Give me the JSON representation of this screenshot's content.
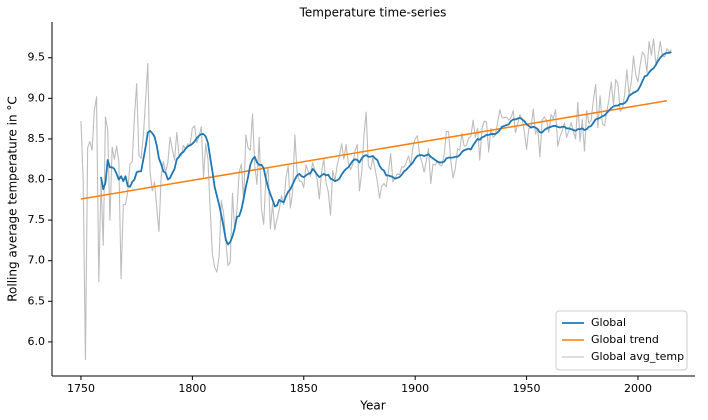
{
  "chart_data": {
    "type": "line",
    "title": "Temperature time-series",
    "xlabel": "Year",
    "ylabel": "Rolling average temperature in °C",
    "xlim": [
      1737,
      2025.6
    ],
    "ylim": [
      5.58,
      9.94
    ],
    "xticks": [
      1750,
      1800,
      1850,
      1900,
      1950,
      2000
    ],
    "yticks": [
      {
        "value": 6,
        "label": "6.0"
      },
      6.5,
      {
        "value": 7,
        "label": "7.0"
      },
      7.5,
      {
        "value": 8,
        "label": "8.0"
      },
      8.5,
      {
        "value": 9,
        "label": "9.0"
      },
      9.5
    ],
    "legend": "lower right",
    "x": [
      1750,
      1751,
      1752,
      1753,
      1754,
      1755,
      1756,
      1757,
      1758,
      1759,
      1760,
      1761,
      1762,
      1763,
      1764,
      1765,
      1766,
      1767,
      1768,
      1769,
      1770,
      1771,
      1772,
      1773,
      1774,
      1775,
      1776,
      1777,
      1778,
      1779,
      1780,
      1781,
      1782,
      1783,
      1784,
      1785,
      1786,
      1787,
      1788,
      1789,
      1790,
      1791,
      1792,
      1793,
      1794,
      1795,
      1796,
      1797,
      1798,
      1799,
      1800,
      1801,
      1802,
      1803,
      1804,
      1805,
      1806,
      1807,
      1808,
      1809,
      1810,
      1811,
      1812,
      1813,
      1814,
      1815,
      1816,
      1817,
      1818,
      1819,
      1820,
      1821,
      1822,
      1823,
      1824,
      1825,
      1826,
      1827,
      1828,
      1829,
      1830,
      1831,
      1832,
      1833,
      1834,
      1835,
      1836,
      1837,
      1838,
      1839,
      1840,
      1841,
      1842,
      1843,
      1844,
      1845,
      1846,
      1847,
      1848,
      1849,
      1850,
      1851,
      1852,
      1853,
      1854,
      1855,
      1856,
      1857,
      1858,
      1859,
      1860,
      1861,
      1862,
      1863,
      1864,
      1865,
      1866,
      1867,
      1868,
      1869,
      1870,
      1871,
      1872,
      1873,
      1874,
      1875,
      1876,
      1877,
      1878,
      1879,
      1880,
      1881,
      1882,
      1883,
      1884,
      1885,
      1886,
      1887,
      1888,
      1889,
      1890,
      1891,
      1892,
      1893,
      1894,
      1895,
      1896,
      1897,
      1898,
      1899,
      1900,
      1901,
      1902,
      1903,
      1904,
      1905,
      1906,
      1907,
      1908,
      1909,
      1910,
      1911,
      1912,
      1913,
      1914,
      1915,
      1916,
      1917,
      1918,
      1919,
      1920,
      1921,
      1922,
      1923,
      1924,
      1925,
      1926,
      1927,
      1928,
      1929,
      1930,
      1931,
      1932,
      1933,
      1934,
      1935,
      1936,
      1937,
      1938,
      1939,
      1940,
      1941,
      1942,
      1943,
      1944,
      1945,
      1946,
      1947,
      1948,
      1949,
      1950,
      1951,
      1952,
      1953,
      1954,
      1955,
      1956,
      1957,
      1958,
      1959,
      1960,
      1961,
      1962,
      1963,
      1964,
      1965,
      1966,
      1967,
      1968,
      1969,
      1970,
      1971,
      1972,
      1973,
      1974,
      1975,
      1976,
      1977,
      1978,
      1979,
      1980,
      1981,
      1982,
      1983,
      1984,
      1985,
      1986,
      1987,
      1988,
      1989,
      1990,
      1991,
      1992,
      1993,
      1994,
      1995,
      1996,
      1997,
      1998,
      1999,
      2000,
      2001,
      2002,
      2003,
      2004,
      2005,
      2006,
      2007,
      2008,
      2009,
      2010,
      2011,
      2012,
      2013,
      2014,
      2015
    ],
    "series": [
      {
        "name": "Global",
        "color": "#1f77b4",
        "width": 1.8,
        "values": [
          null,
          null,
          null,
          null,
          null,
          null,
          null,
          null,
          null,
          8.03,
          7.88,
          7.96,
          8.24,
          8.15,
          8.15,
          8.13,
          8.07,
          8.0,
          8.04,
          7.98,
          8.04,
          7.92,
          7.91,
          7.97,
          8.0,
          8.09,
          8.1,
          8.1,
          8.25,
          8.4,
          8.58,
          8.6,
          8.57,
          8.53,
          8.42,
          8.26,
          8.19,
          8.1,
          8.08,
          8.0,
          8.02,
          8.08,
          8.13,
          8.25,
          8.28,
          8.32,
          8.34,
          8.38,
          8.41,
          8.42,
          8.44,
          8.47,
          8.51,
          8.54,
          8.56,
          8.56,
          8.53,
          8.45,
          8.27,
          8.1,
          7.91,
          7.8,
          7.69,
          7.56,
          7.42,
          7.26,
          7.2,
          7.23,
          7.3,
          7.4,
          7.54,
          7.55,
          7.63,
          7.76,
          7.91,
          8.03,
          8.18,
          8.25,
          8.28,
          8.21,
          8.18,
          8.18,
          8.14,
          8.01,
          7.9,
          7.82,
          7.75,
          7.67,
          7.68,
          7.75,
          7.73,
          7.72,
          7.79,
          7.85,
          7.88,
          7.94,
          8.0,
          8.05,
          8.07,
          8.04,
          8.03,
          8.05,
          8.07,
          8.08,
          8.13,
          8.1,
          8.06,
          8.03,
          8.05,
          8.07,
          8.05,
          8.06,
          8.01,
          8.0,
          7.98,
          7.99,
          8.01,
          8.06,
          8.1,
          8.13,
          8.15,
          8.19,
          8.23,
          8.25,
          8.24,
          8.21,
          8.26,
          8.29,
          8.3,
          8.28,
          8.28,
          8.29,
          8.26,
          8.24,
          8.17,
          8.13,
          8.11,
          8.05,
          8.05,
          8.04,
          8.03,
          8.01,
          8.02,
          8.03,
          8.06,
          8.1,
          8.12,
          8.15,
          8.18,
          8.21,
          8.26,
          8.29,
          8.3,
          8.3,
          8.29,
          8.3,
          8.31,
          8.28,
          8.26,
          8.24,
          8.22,
          8.21,
          8.21,
          8.22,
          8.26,
          8.27,
          8.27,
          8.27,
          8.28,
          8.28,
          8.3,
          8.34,
          8.36,
          8.37,
          8.38,
          8.37,
          8.42,
          8.46,
          8.5,
          8.49,
          8.52,
          8.53,
          8.55,
          8.55,
          8.56,
          8.56,
          8.56,
          8.58,
          8.61,
          8.65,
          8.66,
          8.67,
          8.68,
          8.72,
          8.74,
          8.74,
          8.75,
          8.76,
          8.74,
          8.72,
          8.68,
          8.66,
          8.64,
          8.65,
          8.64,
          8.62,
          8.58,
          8.58,
          8.61,
          8.63,
          8.64,
          8.65,
          8.66,
          8.66,
          8.65,
          8.64,
          8.65,
          8.65,
          8.63,
          8.63,
          8.62,
          8.61,
          8.6,
          8.62,
          8.62,
          8.63,
          8.61,
          8.62,
          8.65,
          8.66,
          8.7,
          8.74,
          8.75,
          8.76,
          8.78,
          8.79,
          8.82,
          8.85,
          8.88,
          8.9,
          8.91,
          8.91,
          8.93,
          8.93,
          8.94,
          8.97,
          9.03,
          9.05,
          9.07,
          9.08,
          9.1,
          9.15,
          9.21,
          9.27,
          9.28,
          9.32,
          9.35,
          9.37,
          9.41,
          9.46,
          9.5,
          9.53,
          9.55,
          9.56,
          9.56,
          9.57
        ]
      },
      {
        "name": "Global trend",
        "color": "#ff7f0e",
        "width": 1.5,
        "x": [
          1750,
          2013
        ],
        "values": [
          7.76,
          8.97
        ]
      },
      {
        "name": "Global avg_temp",
        "color": "#bdbdbd",
        "width": 1.1,
        "values": [
          8.72,
          7.98,
          5.78,
          8.39,
          8.47,
          8.36,
          8.85,
          9.02,
          6.74,
          7.99,
          7.19,
          8.77,
          8.61,
          7.5,
          8.4,
          8.25,
          8.41,
          8.22,
          6.78,
          7.69,
          7.69,
          7.85,
          8.19,
          8.22,
          8.77,
          9.18,
          8.3,
          8.26,
          8.54,
          8.98,
          9.43,
          8.1,
          7.86,
          7.97,
          7.66,
          7.36,
          8.04,
          8.22,
          8.09,
          8.21,
          8.52,
          8.37,
          8.24,
          8.58,
          8.3,
          8.29,
          8.42,
          8.37,
          8.44,
          8.43,
          8.63,
          8.66,
          8.45,
          8.53,
          8.65,
          8.03,
          8.44,
          8.25,
          7.63,
          7.08,
          6.92,
          6.86,
          7.05,
          7.74,
          7.59,
          7.24,
          6.94,
          6.98,
          7.83,
          7.37,
          7.62,
          8.09,
          8.19,
          7.72,
          8.55,
          8.39,
          8.36,
          8.81,
          8.17,
          7.94,
          8.52,
          7.64,
          7.45,
          8.01,
          8.15,
          7.39,
          7.7,
          7.38,
          7.51,
          7.63,
          7.8,
          7.69,
          8.02,
          8.17,
          7.65,
          7.85,
          8.55,
          8.09,
          7.98,
          7.98,
          7.9,
          8.18,
          8.1,
          8.04,
          8.21,
          8.11,
          8.0,
          7.76,
          8.1,
          8.25,
          7.96,
          7.85,
          7.56,
          8.11,
          7.98,
          8.18,
          8.29,
          8.44,
          8.25,
          8.43,
          8.2,
          8.12,
          8.19,
          8.35,
          8.43,
          7.86,
          8.08,
          8.54,
          8.83,
          8.17,
          8.12,
          8.27,
          8.13,
          7.98,
          7.77,
          7.92,
          7.95,
          7.91,
          8.09,
          8.32,
          7.97,
          8.02,
          8.07,
          8.06,
          8.16,
          8.15,
          8.21,
          8.29,
          8.18,
          8.4,
          8.5,
          8.54,
          8.3,
          8.22,
          8.09,
          8.23,
          8.38,
          7.95,
          8.19,
          8.18,
          8.22,
          8.18,
          8.17,
          8.3,
          8.59,
          8.59,
          8.23,
          8.02,
          8.13,
          8.38,
          8.36,
          8.57,
          8.41,
          8.42,
          8.51,
          8.53,
          8.73,
          8.52,
          8.63,
          8.24,
          8.63,
          8.72,
          8.71,
          8.34,
          8.63,
          8.52,
          8.55,
          8.7,
          8.86,
          8.76,
          8.76,
          8.77,
          8.73,
          8.76,
          8.85,
          8.58,
          8.68,
          8.8,
          8.75,
          8.59,
          8.37,
          8.63,
          8.64,
          8.87,
          8.56,
          8.63,
          8.28,
          8.73,
          8.77,
          8.73,
          8.58,
          8.8,
          8.75,
          8.86,
          8.41,
          8.53,
          8.6,
          8.7,
          8.52,
          8.6,
          8.7,
          8.6,
          8.5,
          8.95,
          8.47,
          8.74,
          8.35,
          8.85,
          8.69,
          8.73,
          8.98,
          9.17,
          8.64,
          9.03,
          8.69,
          8.66,
          8.83,
          8.99,
          9.2,
          8.92,
          9.23,
          9.18,
          8.84,
          8.87,
          9.04,
          9.35,
          9.04,
          9.2,
          9.52,
          9.29,
          9.2,
          9.41,
          9.57,
          9.53,
          9.32,
          9.7,
          9.53,
          9.73,
          9.43,
          9.51,
          9.7,
          9.52,
          9.51,
          9.61,
          9.57,
          9.6
        ]
      }
    ]
  }
}
